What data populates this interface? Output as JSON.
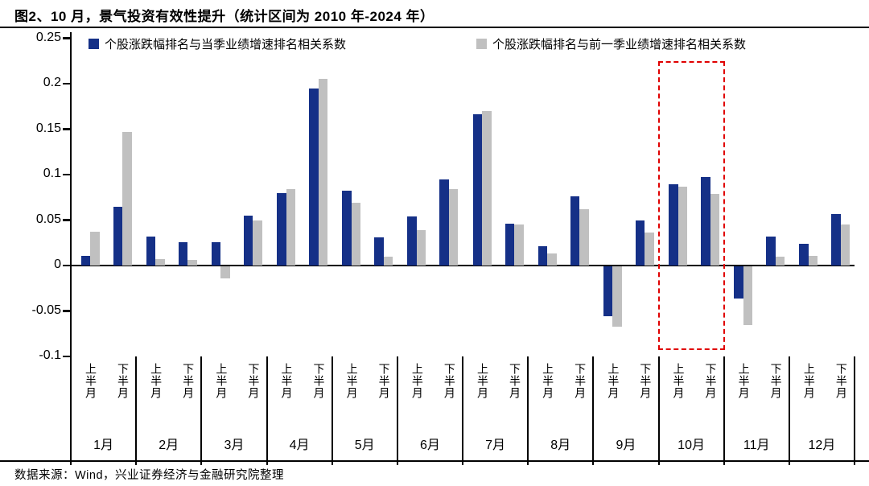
{
  "title": "图2、10 月，景气投资有效性提升（统计区间为 2010 年-2024 年）",
  "source": "数据来源：Wind，兴业证券经济与金融研究院整理",
  "colors": {
    "series_current_quarter": "#153087",
    "series_previous_quarter": "#c0c0c0",
    "highlight_box": "#e00000",
    "axis": "#000000"
  },
  "chart_data": {
    "type": "bar",
    "title": "图2、10 月，景气投资有效性提升（统计区间为 2010 年-2024 年）",
    "months": [
      "1月",
      "2月",
      "3月",
      "4月",
      "5月",
      "6月",
      "7月",
      "8月",
      "9月",
      "10月",
      "11月",
      "12月"
    ],
    "half_labels": [
      "上半月",
      "下半月"
    ],
    "ytick_labels": [
      "0.25",
      "0.2",
      "0.15",
      "0.1",
      "0.05",
      "0",
      "-0.05",
      "-0.1"
    ],
    "ylim": [
      -0.1,
      0.25
    ],
    "grid": false,
    "legend_position": "top",
    "series": [
      {
        "name": "个股涨跌幅排名与当季业绩增速排名相关系数",
        "color": "#153087",
        "values": [
          0.011,
          0.065,
          0.032,
          0.026,
          0.026,
          0.055,
          0.08,
          0.195,
          0.082,
          0.031,
          0.054,
          0.095,
          0.166,
          0.046,
          0.021,
          0.076,
          -0.055,
          0.05,
          0.089,
          0.097,
          -0.035,
          0.032,
          0.024,
          0.057
        ]
      },
      {
        "name": "个股涨跌幅排名与前一季业绩增速排名相关系数",
        "color": "#c0c0c0",
        "values": [
          0.037,
          0.147,
          0.007,
          0.006,
          -0.013,
          0.05,
          0.084,
          0.205,
          0.069,
          0.01,
          0.039,
          0.084,
          0.17,
          0.045,
          0.013,
          0.062,
          -0.066,
          0.036,
          0.087,
          0.079,
          -0.065,
          0.01,
          0.011,
          0.045
        ]
      }
    ],
    "value_order_note": "values are per half-month: [1月上, 1月下, 2月上, 2月下, ...]",
    "highlight": {
      "month": "10月",
      "style": "red-dashed-box"
    }
  }
}
